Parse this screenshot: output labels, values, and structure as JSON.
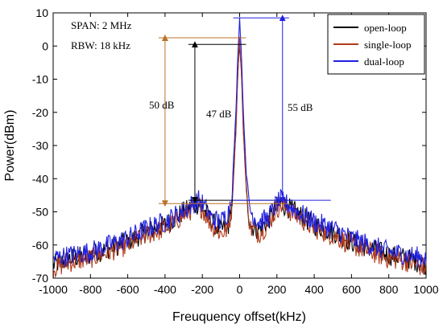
{
  "chart_data": {
    "type": "line",
    "title": "",
    "xlabel": "Freuquency offset(kHz)",
    "ylabel": "Power(dBm)",
    "xlim": [
      -1000,
      1000
    ],
    "ylim": [
      -70,
      10
    ],
    "x_ticks": [
      -1000,
      -800,
      -600,
      -400,
      -200,
      0,
      200,
      400,
      600,
      800,
      1000
    ],
    "y_ticks": [
      10,
      0,
      -10,
      -20,
      -30,
      -40,
      -50,
      -60,
      -70
    ],
    "grid": false,
    "legend_position": "top-right",
    "x": [
      -1000,
      -900,
      -800,
      -700,
      -600,
      -500,
      -400,
      -300,
      -250,
      -220,
      -200,
      -150,
      -100,
      -60,
      -40,
      -20,
      -10,
      0,
      10,
      20,
      40,
      60,
      100,
      150,
      200,
      220,
      250,
      300,
      400,
      500,
      600,
      700,
      800,
      900,
      1000
    ],
    "series": [
      {
        "name": "open-loop",
        "color": "#000000",
        "values": [
          -66,
          -64,
          -63,
          -61,
          -59,
          -56,
          -54,
          -50,
          -48.5,
          -47.5,
          -48.5,
          -53,
          -55.5,
          -54,
          -47,
          -25,
          -8,
          0.5,
          -8,
          -25,
          -47,
          -54,
          -55.5,
          -53,
          -48.5,
          -47.5,
          -48.5,
          -50,
          -54,
          -56,
          -59,
          -61,
          -63,
          -64,
          -66
        ]
      },
      {
        "name": "single-loop",
        "color": "#b03a1a",
        "values": [
          -67,
          -65,
          -64,
          -62,
          -60,
          -57,
          -55,
          -51,
          -49,
          -48,
          -49,
          -54,
          -56.5,
          -55,
          -48,
          -26,
          -9,
          2.5,
          -9,
          -26,
          -48,
          -55,
          -56.5,
          -54,
          -49,
          -48,
          -49,
          -51,
          -55,
          -57,
          -60,
          -62,
          -64,
          -65,
          -67
        ]
      },
      {
        "name": "dual-loop",
        "color": "#2020e0",
        "values": [
          -64,
          -63,
          -62,
          -60,
          -58,
          -55,
          -53,
          -49.5,
          -47.5,
          -46.5,
          -47.5,
          -52,
          -53,
          -50,
          -43,
          -20,
          -3,
          8.5,
          -3,
          -20,
          -43,
          -50,
          -53,
          -52,
          -47.5,
          -46.5,
          -47.5,
          -49.5,
          -53,
          -55,
          -58,
          -60,
          -62,
          -63,
          -64
        ]
      }
    ],
    "annotations": [
      {
        "text": "SPAN: 2 MHz"
      },
      {
        "text": "RBW: 18 kHz"
      },
      {
        "text": "50 dB",
        "color": "#b8732a",
        "from_y": 2.5,
        "to_y": -47.5,
        "at_x": -400
      },
      {
        "text": "47 dB",
        "color": "#000000",
        "from_y": 0.5,
        "to_y": -46.5,
        "at_x": -240
      },
      {
        "text": "55 dB",
        "color": "#2020e0",
        "from_y": 8.5,
        "to_y": -46.5,
        "at_x": 230
      }
    ]
  }
}
